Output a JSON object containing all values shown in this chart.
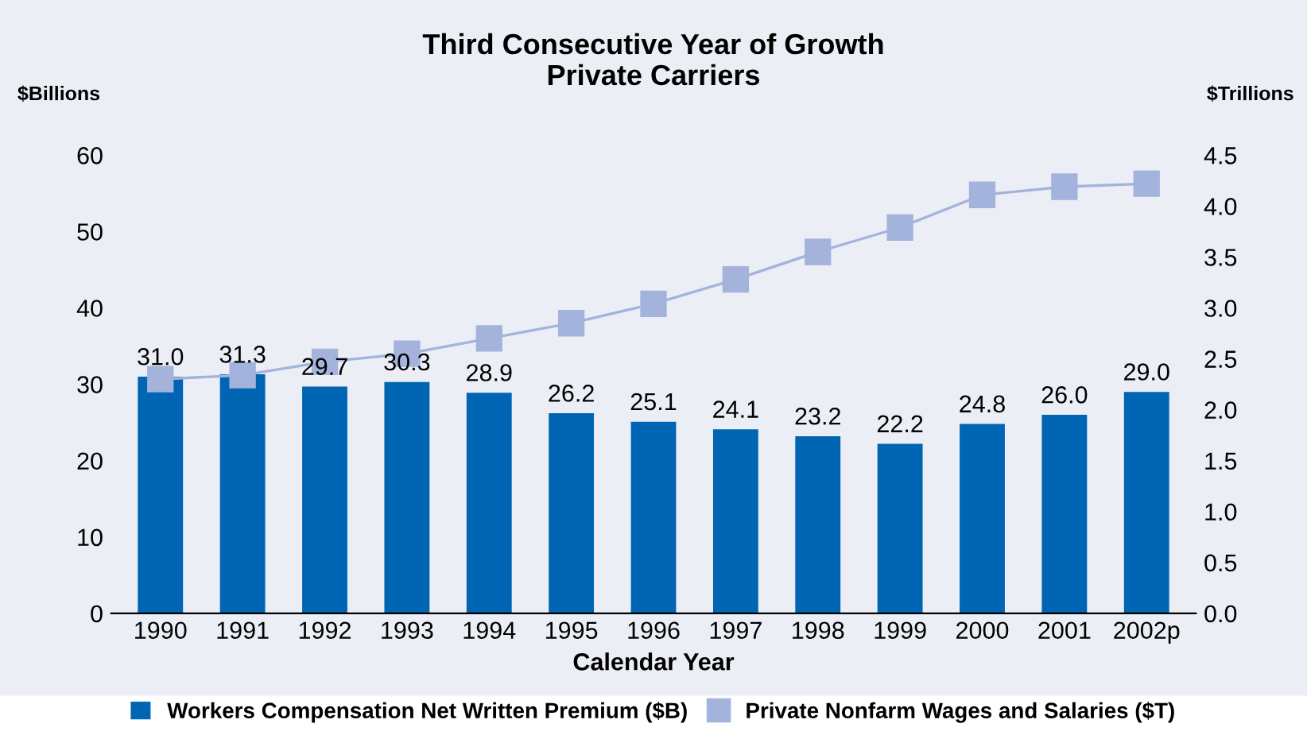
{
  "chart_data": {
    "type": "bar",
    "title": "Third Consecutive Year of Growth\nPrivate Carriers",
    "xlabel": "Calendar Year",
    "ylabel": "$Billions",
    "y2label": "$Trillions",
    "categories": [
      "1990",
      "1991",
      "1992",
      "1993",
      "1994",
      "1995",
      "1996",
      "1997",
      "1998",
      "1999",
      "2000",
      "2001",
      "2002p"
    ],
    "series": [
      {
        "name": "Workers Compensation Net Written Premium ($B)",
        "color": "#0066b3",
        "values": [
          31.0,
          31.3,
          29.7,
          30.3,
          28.9,
          26.2,
          25.1,
          24.1,
          23.2,
          22.2,
          24.8,
          26.0,
          29.0
        ],
        "value_labels": [
          "31.0",
          "31.3",
          "29.7",
          "30.3",
          "28.9",
          "26.2",
          "25.1",
          "24.1",
          "23.2",
          "22.2",
          "24.8",
          "26.0",
          "29.0"
        ]
      },
      {
        "name": "Private Nonfarm Wages and Salaries ($T)",
        "type": "line",
        "axis": "y2",
        "color": "#a3b3dc",
        "marker": "square",
        "values": [
          2.3,
          2.34,
          2.47,
          2.55,
          2.7,
          2.85,
          3.04,
          3.28,
          3.55,
          3.79,
          4.11,
          4.19,
          4.22
        ]
      }
    ],
    "ylim": [
      0,
      60
    ],
    "yticks": [
      0,
      10,
      20,
      30,
      40,
      50,
      60
    ],
    "y2lim": [
      0,
      4.5
    ],
    "y2ticks": [
      {
        "value": 0,
        "label": "0.0"
      },
      {
        "value": 0.5,
        "label": "0.5"
      },
      {
        "value": 1,
        "label": "1.0"
      },
      {
        "value": 1.5,
        "label": "1.5"
      },
      {
        "value": 2,
        "label": "2.0"
      },
      {
        "value": 2.5,
        "label": "2.5"
      },
      {
        "value": 3,
        "label": "3.0"
      },
      {
        "value": 3.5,
        "label": "3.5"
      },
      {
        "value": 4,
        "label": "4.0"
      },
      {
        "value": 4.5,
        "label": "4.5"
      }
    ],
    "grid": false,
    "legend": "bottom"
  }
}
